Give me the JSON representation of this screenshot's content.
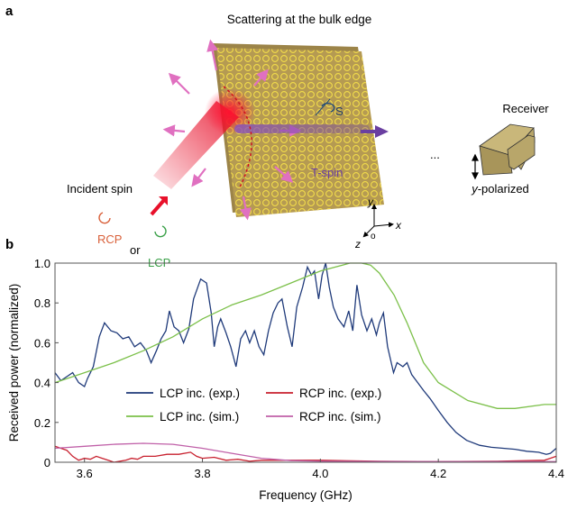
{
  "panel_a": {
    "label": "a",
    "title": "Scattering at the bulk edge",
    "incident": "Incident spin",
    "rcp": "RCP",
    "or": "or",
    "lcp": "LCP",
    "spin_s": "S",
    "tspin": "T-spin",
    "ellipsis": "...",
    "receiver": "Receiver",
    "ypol_italic": "y",
    "ypol_rest": "-polarized",
    "axis_x": "x",
    "axis_y": "y",
    "axis_z": "z",
    "axis_o": "o",
    "colors": {
      "slab": "#b59a52",
      "beam": "#e8102a",
      "scatter_arrow": "#e070c0",
      "tspin": "#6a3fa0",
      "rcp": "#d9603a",
      "lcp": "#3aa048",
      "receiver": "#b8a66a"
    }
  },
  "panel_b": {
    "label": "b"
  },
  "chart_data": {
    "type": "line",
    "xlabel": "Frequency (GHz)",
    "ylabel": "Received power (normalized)",
    "xlim": [
      3.55,
      4.4
    ],
    "ylim": [
      0,
      1.0
    ],
    "xticks": [
      3.6,
      3.8,
      4.0,
      4.2,
      4.4
    ],
    "xtick_labels": [
      "3.6",
      "3.8",
      "4.0",
      "4.2",
      "4.4"
    ],
    "yticks": [
      0,
      0.2,
      0.4,
      0.6,
      0.8,
      1.0
    ],
    "ytick_labels": [
      "0",
      "0.2",
      "0.4",
      "0.6",
      "0.8",
      "1.0"
    ],
    "grid": false,
    "legend_placement": "bottom-center",
    "series": [
      {
        "name": "LCP inc. (exp.)",
        "color": "#1f3a7a",
        "x": [
          3.55,
          3.56,
          3.57,
          3.58,
          3.59,
          3.6,
          3.605,
          3.615,
          3.625,
          3.634,
          3.645,
          3.655,
          3.665,
          3.675,
          3.685,
          3.695,
          3.705,
          3.713,
          3.722,
          3.73,
          3.738,
          3.744,
          3.752,
          3.76,
          3.768,
          3.777,
          3.785,
          3.797,
          3.807,
          3.815,
          3.82,
          3.826,
          3.831,
          3.84,
          3.848,
          3.857,
          3.865,
          3.873,
          3.88,
          3.888,
          3.896,
          3.904,
          3.912,
          3.92,
          3.928,
          3.935,
          3.944,
          3.952,
          3.96,
          3.97,
          3.978,
          3.985,
          3.99,
          3.997,
          4.003,
          4.009,
          4.015,
          4.022,
          4.03,
          4.04,
          4.048,
          4.055,
          4.062,
          4.07,
          4.079,
          4.087,
          4.095,
          4.1,
          4.107,
          4.114,
          4.124,
          4.13,
          4.14,
          4.147,
          4.155,
          4.165,
          4.175,
          4.186,
          4.2,
          4.215,
          4.23,
          4.248,
          4.27,
          4.29,
          4.31,
          4.33,
          4.35,
          4.37,
          4.383,
          4.39,
          4.4
        ],
        "y": [
          0.45,
          0.41,
          0.43,
          0.45,
          0.4,
          0.38,
          0.42,
          0.48,
          0.63,
          0.7,
          0.66,
          0.65,
          0.62,
          0.63,
          0.58,
          0.6,
          0.56,
          0.5,
          0.56,
          0.62,
          0.66,
          0.76,
          0.68,
          0.66,
          0.6,
          0.67,
          0.82,
          0.92,
          0.9,
          0.75,
          0.58,
          0.68,
          0.72,
          0.65,
          0.58,
          0.48,
          0.62,
          0.66,
          0.6,
          0.66,
          0.58,
          0.54,
          0.66,
          0.75,
          0.8,
          0.82,
          0.68,
          0.58,
          0.78,
          0.88,
          0.98,
          0.94,
          0.96,
          0.82,
          0.94,
          1.0,
          0.88,
          0.78,
          0.72,
          0.68,
          0.76,
          0.66,
          0.89,
          0.74,
          0.66,
          0.72,
          0.64,
          0.7,
          0.75,
          0.58,
          0.45,
          0.5,
          0.48,
          0.5,
          0.44,
          0.4,
          0.36,
          0.32,
          0.26,
          0.2,
          0.15,
          0.11,
          0.085,
          0.075,
          0.07,
          0.065,
          0.055,
          0.05,
          0.04,
          0.045,
          0.07
        ]
      },
      {
        "name": "LCP inc. (sim.)",
        "color": "#7cc04a",
        "x": [
          3.55,
          3.6,
          3.65,
          3.7,
          3.75,
          3.8,
          3.85,
          3.9,
          3.95,
          4.0,
          4.05,
          4.07,
          4.085,
          4.1,
          4.125,
          4.147,
          4.175,
          4.2,
          4.25,
          4.3,
          4.33,
          4.38,
          4.4
        ],
        "y": [
          0.4,
          0.45,
          0.5,
          0.56,
          0.63,
          0.72,
          0.79,
          0.84,
          0.9,
          0.96,
          1.0,
          1.0,
          0.99,
          0.95,
          0.84,
          0.7,
          0.5,
          0.4,
          0.31,
          0.27,
          0.27,
          0.29,
          0.29
        ]
      },
      {
        "name": "RCP inc. (exp.)",
        "color": "#c8202e",
        "x": [
          3.55,
          3.56,
          3.57,
          3.58,
          3.59,
          3.6,
          3.61,
          3.62,
          3.63,
          3.64,
          3.65,
          3.66,
          3.67,
          3.68,
          3.69,
          3.7,
          3.72,
          3.74,
          3.76,
          3.78,
          3.79,
          3.8,
          3.82,
          3.84,
          3.86,
          3.88,
          3.9,
          4.0,
          4.1,
          4.2,
          4.3,
          4.38,
          4.4
        ],
        "y": [
          0.08,
          0.07,
          0.06,
          0.03,
          0.01,
          0.02,
          0.015,
          0.03,
          0.02,
          0.01,
          0.0,
          0.005,
          0.01,
          0.02,
          0.015,
          0.03,
          0.03,
          0.04,
          0.04,
          0.05,
          0.03,
          0.02,
          0.025,
          0.01,
          0.015,
          0.005,
          0.01,
          0.01,
          0.005,
          0.003,
          0.005,
          0.01,
          0.03
        ]
      },
      {
        "name": "RCP inc. (sim.)",
        "color": "#c060a8",
        "x": [
          3.55,
          3.6,
          3.65,
          3.7,
          3.75,
          3.8,
          3.85,
          3.9,
          3.95,
          4.0,
          4.2,
          4.4
        ],
        "y": [
          0.07,
          0.08,
          0.09,
          0.095,
          0.09,
          0.07,
          0.045,
          0.02,
          0.008,
          0.005,
          0.003,
          0.003
        ]
      }
    ]
  }
}
